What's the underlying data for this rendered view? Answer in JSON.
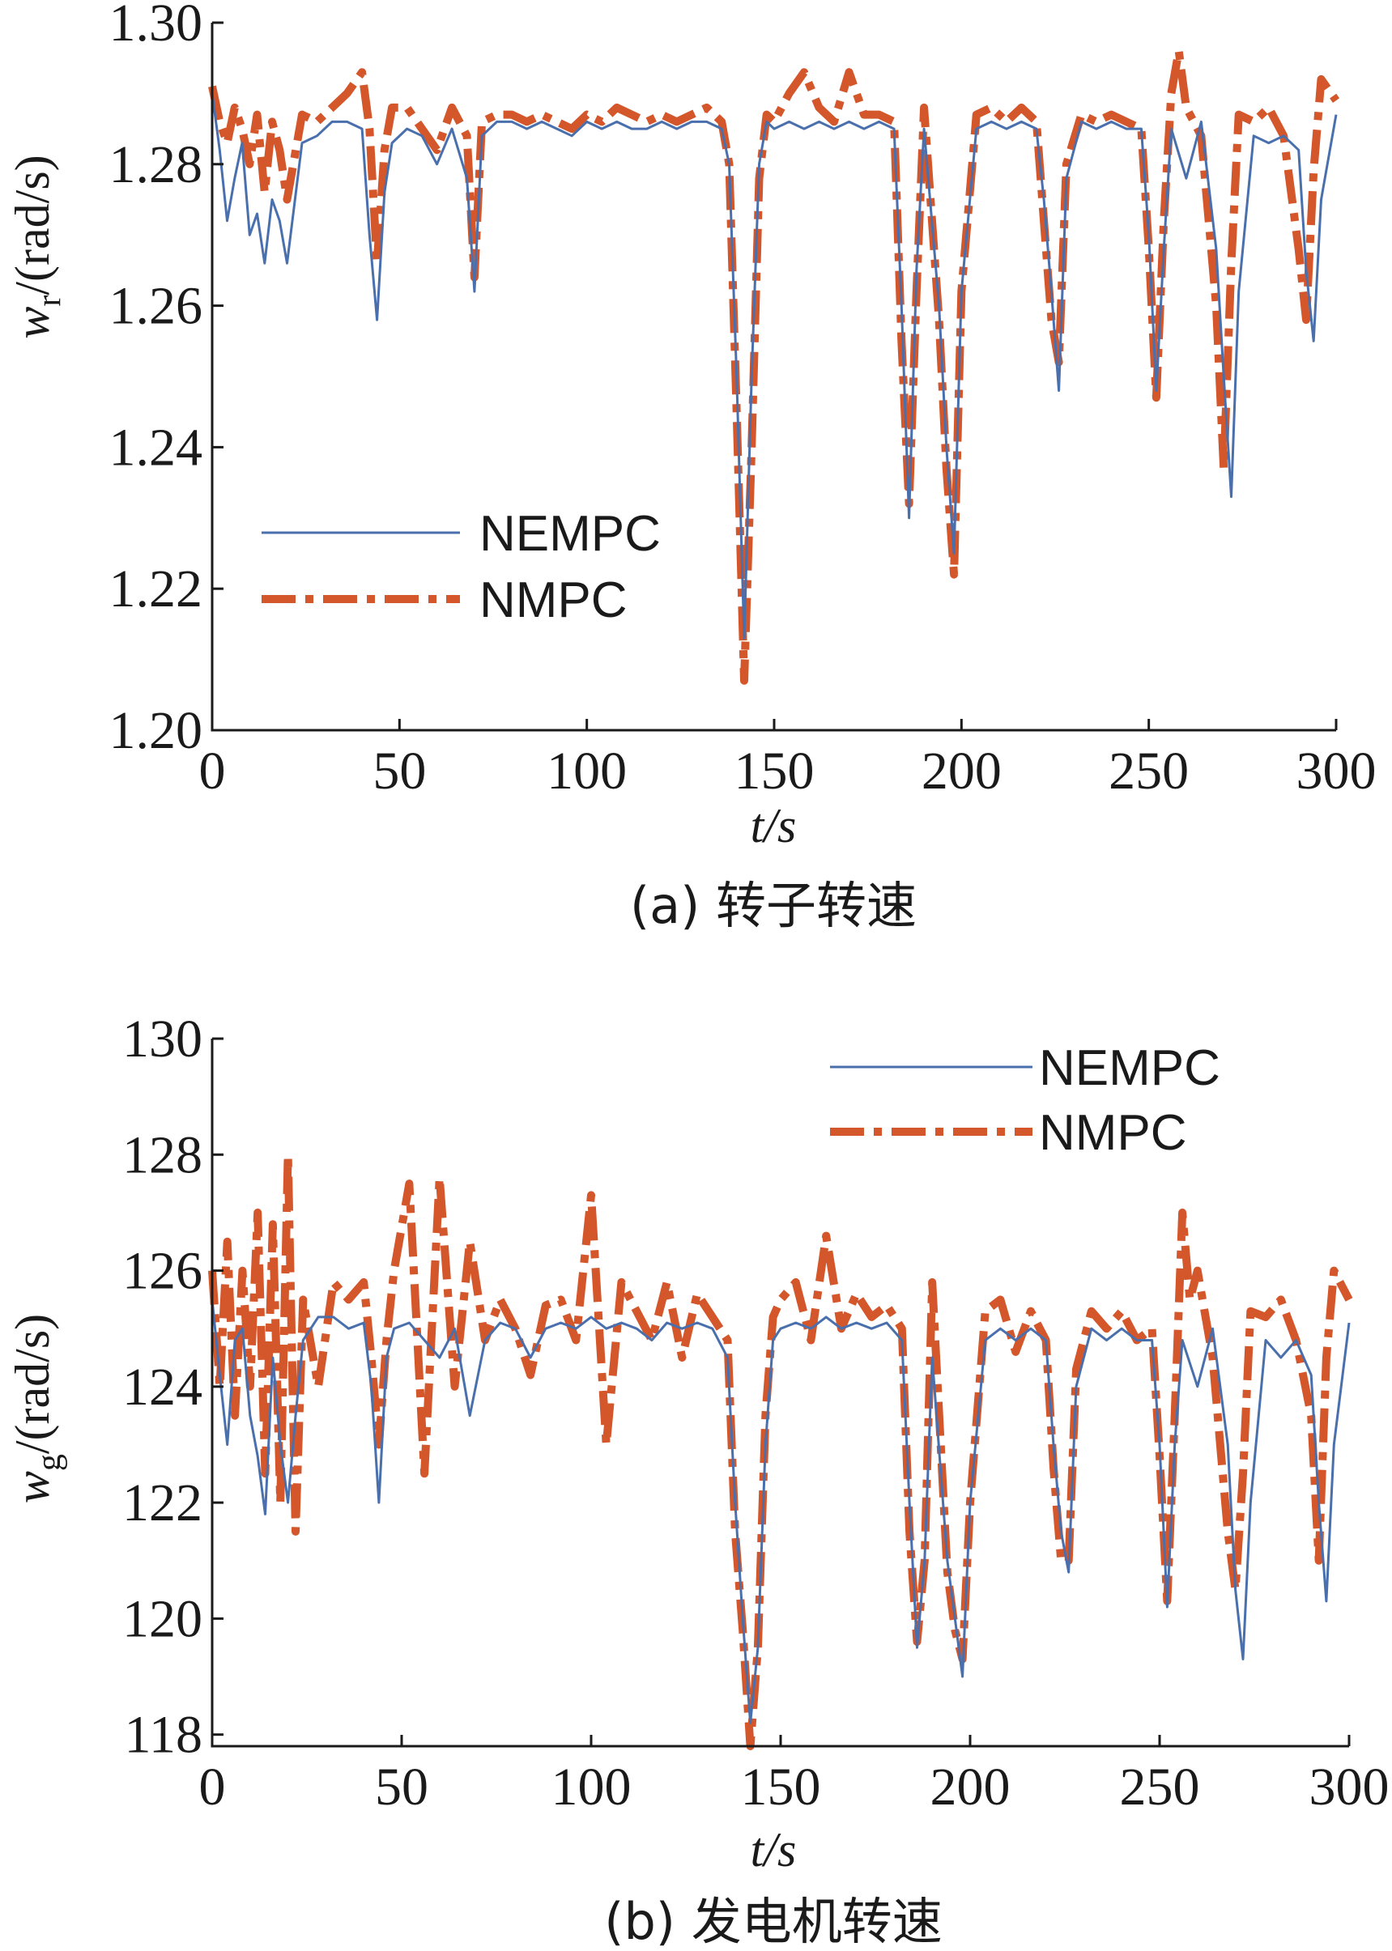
{
  "chart_data": [
    {
      "type": "line",
      "caption": "(a) 转子转速",
      "xlabel": "t/s",
      "ylabel": "wr/(rad/s)",
      "ylabel_main": "w",
      "ylabel_sub": "r",
      "ylabel_unit": "/(rad/s)",
      "xlim": [
        0,
        300
      ],
      "ylim": [
        1.2,
        1.3
      ],
      "xticks": [
        0,
        50,
        100,
        150,
        200,
        250,
        300
      ],
      "xtick_labels": [
        "0",
        "50",
        "100",
        "150",
        "200",
        "250",
        "300"
      ],
      "yticks": [
        1.2,
        1.22,
        1.24,
        1.26,
        1.28,
        1.3
      ],
      "ytick_labels": [
        "1.20",
        "1.22",
        "1.24",
        "1.26",
        "1.28",
        "1.30"
      ],
      "legend_position": "lower-left",
      "grid": false,
      "series": [
        {
          "name": "NEMPC",
          "color": "#4a6fad",
          "style": "solid",
          "x": [
            0,
            2,
            4,
            6,
            8,
            10,
            12,
            14,
            16,
            18,
            20,
            24,
            28,
            32,
            36,
            40,
            42,
            44,
            46,
            48,
            52,
            56,
            60,
            64,
            68,
            70,
            72,
            76,
            80,
            84,
            88,
            92,
            96,
            100,
            104,
            108,
            112,
            116,
            120,
            124,
            128,
            132,
            136,
            138,
            140,
            142,
            144,
            146,
            148,
            150,
            154,
            158,
            162,
            166,
            170,
            174,
            178,
            182,
            184,
            186,
            188,
            190,
            194,
            196,
            198,
            200,
            204,
            208,
            212,
            216,
            220,
            222,
            224,
            226,
            228,
            232,
            236,
            240,
            244,
            248,
            250,
            252,
            254,
            256,
            260,
            264,
            268,
            270,
            272,
            274,
            278,
            282,
            286,
            290,
            292,
            294,
            296,
            300
          ],
          "y": [
            1.29,
            1.282,
            1.272,
            1.278,
            1.283,
            1.27,
            1.273,
            1.266,
            1.275,
            1.272,
            1.266,
            1.283,
            1.284,
            1.286,
            1.286,
            1.285,
            1.27,
            1.258,
            1.276,
            1.283,
            1.285,
            1.284,
            1.28,
            1.285,
            1.278,
            1.262,
            1.284,
            1.286,
            1.286,
            1.285,
            1.286,
            1.285,
            1.284,
            1.286,
            1.285,
            1.286,
            1.285,
            1.285,
            1.286,
            1.285,
            1.286,
            1.286,
            1.285,
            1.28,
            1.25,
            1.213,
            1.25,
            1.28,
            1.286,
            1.285,
            1.286,
            1.285,
            1.286,
            1.285,
            1.286,
            1.285,
            1.286,
            1.285,
            1.26,
            1.23,
            1.265,
            1.285,
            1.26,
            1.24,
            1.225,
            1.262,
            1.285,
            1.286,
            1.285,
            1.286,
            1.285,
            1.275,
            1.262,
            1.248,
            1.278,
            1.286,
            1.285,
            1.286,
            1.285,
            1.285,
            1.27,
            1.248,
            1.268,
            1.285,
            1.278,
            1.286,
            1.268,
            1.25,
            1.233,
            1.262,
            1.284,
            1.283,
            1.284,
            1.282,
            1.265,
            1.255,
            1.275,
            1.287
          ]
        },
        {
          "name": "NMPC",
          "color": "#d4562b",
          "style": "dash-dot",
          "x": [
            0,
            2,
            4,
            6,
            8,
            10,
            12,
            14,
            16,
            18,
            20,
            24,
            28,
            32,
            36,
            40,
            42,
            44,
            46,
            48,
            52,
            56,
            60,
            64,
            68,
            70,
            72,
            76,
            80,
            84,
            88,
            92,
            96,
            100,
            104,
            108,
            112,
            116,
            120,
            124,
            128,
            132,
            136,
            138,
            140,
            142,
            144,
            146,
            148,
            150,
            154,
            158,
            162,
            166,
            170,
            174,
            178,
            182,
            184,
            186,
            188,
            190,
            194,
            196,
            198,
            200,
            204,
            208,
            212,
            216,
            220,
            222,
            224,
            226,
            228,
            232,
            236,
            240,
            244,
            248,
            250,
            252,
            254,
            256,
            258,
            260,
            264,
            268,
            270,
            272,
            274,
            278,
            282,
            286,
            290,
            292,
            294,
            296,
            300
          ],
          "y": [
            1.291,
            1.286,
            1.283,
            1.288,
            1.285,
            1.28,
            1.287,
            1.276,
            1.286,
            1.282,
            1.275,
            1.287,
            1.286,
            1.288,
            1.29,
            1.293,
            1.285,
            1.266,
            1.282,
            1.288,
            1.288,
            1.285,
            1.282,
            1.288,
            1.284,
            1.264,
            1.286,
            1.287,
            1.287,
            1.286,
            1.287,
            1.286,
            1.285,
            1.287,
            1.286,
            1.288,
            1.287,
            1.286,
            1.287,
            1.286,
            1.287,
            1.288,
            1.286,
            1.28,
            1.245,
            1.207,
            1.24,
            1.278,
            1.287,
            1.286,
            1.29,
            1.293,
            1.288,
            1.286,
            1.293,
            1.287,
            1.287,
            1.286,
            1.255,
            1.232,
            1.262,
            1.288,
            1.258,
            1.237,
            1.222,
            1.262,
            1.287,
            1.288,
            1.286,
            1.288,
            1.286,
            1.272,
            1.258,
            1.252,
            1.28,
            1.287,
            1.286,
            1.287,
            1.286,
            1.285,
            1.268,
            1.247,
            1.272,
            1.29,
            1.296,
            1.288,
            1.284,
            1.26,
            1.237,
            1.266,
            1.287,
            1.286,
            1.288,
            1.284,
            1.268,
            1.258,
            1.279,
            1.292,
            1.289
          ]
        }
      ]
    },
    {
      "type": "line",
      "caption": "(b) 发电机转速",
      "xlabel": "t/s",
      "ylabel": "wg/(rad/s)",
      "ylabel_main": "w",
      "ylabel_sub": "g",
      "ylabel_unit": "/(rad/s)",
      "xlim": [
        0,
        300
      ],
      "ylim": [
        117.8,
        130
      ],
      "xticks": [
        0,
        50,
        100,
        150,
        200,
        250,
        300
      ],
      "xtick_labels": [
        "0",
        "50",
        "100",
        "150",
        "200",
        "250",
        "300"
      ],
      "yticks": [
        118,
        120,
        122,
        124,
        126,
        128,
        130
      ],
      "ytick_labels": [
        "118",
        "120",
        "122",
        "124",
        "126",
        "128",
        "130"
      ],
      "legend_position": "top-right",
      "grid": false,
      "series": [
        {
          "name": "NEMPC",
          "color": "#4a6fad",
          "style": "solid",
          "x": [
            0,
            2,
            4,
            6,
            8,
            10,
            12,
            14,
            16,
            18,
            20,
            22,
            24,
            28,
            32,
            36,
            40,
            42,
            44,
            46,
            48,
            52,
            56,
            60,
            64,
            68,
            72,
            76,
            80,
            84,
            88,
            92,
            96,
            100,
            104,
            108,
            112,
            116,
            120,
            124,
            128,
            132,
            136,
            138,
            140,
            142,
            144,
            146,
            148,
            150,
            154,
            158,
            162,
            166,
            170,
            174,
            178,
            182,
            184,
            186,
            188,
            190,
            194,
            196,
            198,
            200,
            204,
            208,
            212,
            216,
            220,
            222,
            224,
            226,
            228,
            232,
            236,
            240,
            244,
            248,
            250,
            252,
            254,
            256,
            260,
            264,
            268,
            270,
            272,
            274,
            278,
            282,
            286,
            290,
            292,
            294,
            296,
            300
          ],
          "y": [
            125.5,
            124.2,
            123.0,
            124.8,
            125.0,
            123.5,
            122.8,
            121.8,
            124.5,
            123.0,
            122.0,
            123.5,
            124.8,
            125.2,
            125.2,
            125.0,
            125.1,
            124.0,
            122.0,
            124.5,
            125.0,
            125.1,
            124.8,
            124.5,
            125.0,
            123.5,
            124.8,
            125.1,
            125.0,
            124.5,
            125.0,
            125.1,
            125.0,
            125.2,
            125.0,
            125.1,
            125.0,
            124.8,
            125.1,
            125.0,
            125.1,
            125.0,
            124.5,
            122.0,
            120.0,
            118.2,
            119.5,
            123.0,
            124.8,
            125.0,
            125.1,
            125.0,
            125.2,
            125.0,
            125.1,
            125.0,
            125.1,
            124.8,
            122.0,
            119.5,
            121.0,
            124.5,
            121.0,
            120.0,
            119.0,
            122.0,
            124.8,
            125.0,
            124.8,
            125.0,
            124.8,
            123.0,
            121.5,
            120.8,
            124.0,
            125.0,
            124.8,
            125.0,
            124.8,
            124.8,
            123.0,
            120.2,
            123.0,
            124.8,
            124.0,
            125.0,
            123.0,
            120.5,
            119.3,
            122.0,
            124.8,
            124.5,
            124.8,
            124.2,
            122.0,
            120.3,
            123.0,
            125.1
          ]
        },
        {
          "name": "NMPC",
          "color": "#d4562b",
          "style": "dash-dot",
          "x": [
            0,
            2,
            4,
            6,
            8,
            10,
            12,
            14,
            16,
            18,
            20,
            22,
            24,
            28,
            32,
            36,
            40,
            42,
            44,
            46,
            48,
            52,
            56,
            60,
            64,
            68,
            72,
            76,
            80,
            84,
            88,
            92,
            96,
            100,
            104,
            108,
            112,
            116,
            120,
            124,
            128,
            132,
            136,
            138,
            140,
            142,
            144,
            146,
            148,
            150,
            154,
            158,
            162,
            166,
            170,
            174,
            178,
            182,
            184,
            186,
            188,
            190,
            194,
            196,
            198,
            200,
            204,
            208,
            212,
            216,
            220,
            222,
            224,
            226,
            228,
            232,
            236,
            240,
            244,
            248,
            250,
            252,
            254,
            256,
            258,
            260,
            264,
            268,
            270,
            272,
            274,
            278,
            282,
            286,
            290,
            292,
            294,
            296,
            300
          ],
          "y": [
            126.0,
            124.0,
            126.5,
            123.5,
            126.0,
            124.0,
            127.0,
            122.5,
            126.8,
            122.0,
            128.0,
            121.5,
            125.5,
            124.0,
            125.8,
            125.5,
            125.8,
            124.5,
            123.0,
            124.8,
            126.0,
            127.5,
            122.5,
            127.6,
            124.0,
            126.5,
            124.8,
            125.5,
            125.0,
            124.2,
            125.4,
            125.5,
            124.8,
            127.3,
            123.0,
            125.8,
            125.3,
            124.8,
            125.8,
            124.5,
            125.6,
            125.2,
            124.8,
            121.5,
            119.8,
            117.8,
            119.5,
            123.5,
            125.2,
            125.5,
            125.8,
            124.8,
            126.6,
            125.0,
            125.6,
            125.2,
            125.4,
            125.0,
            121.5,
            119.6,
            121.0,
            125.8,
            120.8,
            119.8,
            119.3,
            122.0,
            125.3,
            125.5,
            124.6,
            125.3,
            124.8,
            122.6,
            121.0,
            121.0,
            124.3,
            125.3,
            125.0,
            125.3,
            124.8,
            125.0,
            122.8,
            120.3,
            123.5,
            127.0,
            125.5,
            126.0,
            124.5,
            121.5,
            120.5,
            122.5,
            125.3,
            125.2,
            125.5,
            124.8,
            123.5,
            121.0,
            124.5,
            126.0,
            125.5
          ]
        }
      ]
    }
  ]
}
